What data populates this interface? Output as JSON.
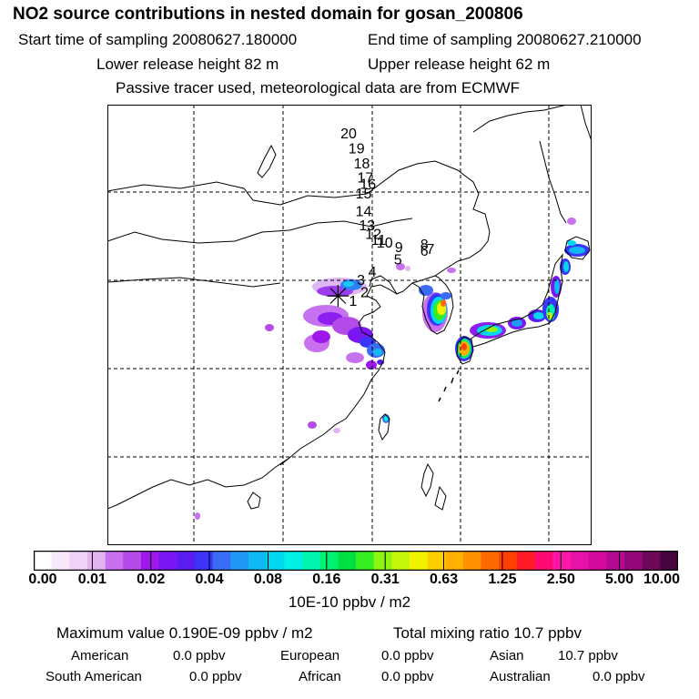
{
  "header": {
    "title": "NO2 source contributions in nested domain for gosan_200806",
    "start_time": "Start time of sampling 20080627.180000",
    "end_time": "End time of sampling 20080627.210000",
    "lower_release": "Lower release height   82 m",
    "upper_release": "Upper release height   62 m",
    "tracer_note": "Passive tracer used, meteorological data are from ECMWF"
  },
  "map": {
    "trajectory_labels": [
      {
        "label": "20",
        "lon": 127.4,
        "lat": 51.6
      },
      {
        "label": "19",
        "lon": 128.3,
        "lat": 49.9
      },
      {
        "label": "18",
        "lon": 128.9,
        "lat": 48.2
      },
      {
        "label": "17",
        "lon": 129.3,
        "lat": 46.6
      },
      {
        "label": "16",
        "lon": 129.6,
        "lat": 45.9
      },
      {
        "label": "15",
        "lon": 129.1,
        "lat": 44.8
      },
      {
        "label": "14",
        "lon": 129.1,
        "lat": 42.8
      },
      {
        "label": "13",
        "lon": 129.5,
        "lat": 41.2
      },
      {
        "label": "12",
        "lon": 130.2,
        "lat": 40.2
      },
      {
        "label": "11",
        "lon": 130.8,
        "lat": 39.5
      },
      {
        "label": "10",
        "lon": 131.5,
        "lat": 39.2
      },
      {
        "label": "9",
        "lon": 133.1,
        "lat": 38.7
      },
      {
        "label": "8",
        "lon": 136.0,
        "lat": 39.0
      },
      {
        "label": "7",
        "lon": 136.7,
        "lat": 38.5
      },
      {
        "label": "6",
        "lon": 136.0,
        "lat": 38.3
      },
      {
        "label": "5",
        "lon": 133.0,
        "lat": 37.3
      },
      {
        "label": "4",
        "lon": 130.1,
        "lat": 35.9
      },
      {
        "label": "3",
        "lon": 128.8,
        "lat": 35.0
      },
      {
        "label": "2",
        "lon": 129.2,
        "lat": 33.6
      },
      {
        "label": "1",
        "lon": 127.9,
        "lat": 32.6
      }
    ],
    "receptor": {
      "lon": 126.2,
      "lat": 33.3
    },
    "colors": {
      "coast": "#000000",
      "grid": "#000000"
    }
  },
  "colorbar": {
    "colors": [
      "#ffffff",
      "#f7e9fb",
      "#efd2f7",
      "#e4b4f1",
      "#c870ee",
      "#b44be8",
      "#9e18ec",
      "#7a16f2",
      "#5a1cf0",
      "#3a35f8",
      "#3b6cf6",
      "#1f98f7",
      "#10b8f4",
      "#00d8f0",
      "#00f0e8",
      "#00f5b0",
      "#00f070",
      "#00e040",
      "#36ee1f",
      "#8ef412",
      "#c6f60c",
      "#f2f200",
      "#ffd000",
      "#ffb000",
      "#ff9000",
      "#ff6a00",
      "#ff4000",
      "#ff1c26",
      "#ff0a70",
      "#ff18a8",
      "#e812a8",
      "#d20b9e",
      "#b40a92",
      "#950879",
      "#6e0758",
      "#46053d"
    ],
    "tick_labels": [
      "0.00",
      "0.01",
      "0.02",
      "0.04",
      "0.08",
      "0.16",
      "0.31",
      "0.63",
      "1.25",
      "2.50",
      "5.00",
      "10.00"
    ],
    "unit": "10E-10 ppbv / m2"
  },
  "summary": {
    "max_value": "Maximum value  0.190E-09 ppbv / m2",
    "total_mixing": "Total mixing ratio       10.7 ppbv",
    "regions": [
      {
        "name": "American",
        "value": "0.0 ppbv"
      },
      {
        "name": "European",
        "value": "0.0 ppbv"
      },
      {
        "name": "Asian",
        "value": "10.7 ppbv"
      },
      {
        "name": "South American",
        "value": "0.0 ppbv"
      },
      {
        "name": "African",
        "value": "0.0 ppbv"
      },
      {
        "name": "Australian",
        "value": "0.0 ppbv"
      }
    ]
  }
}
